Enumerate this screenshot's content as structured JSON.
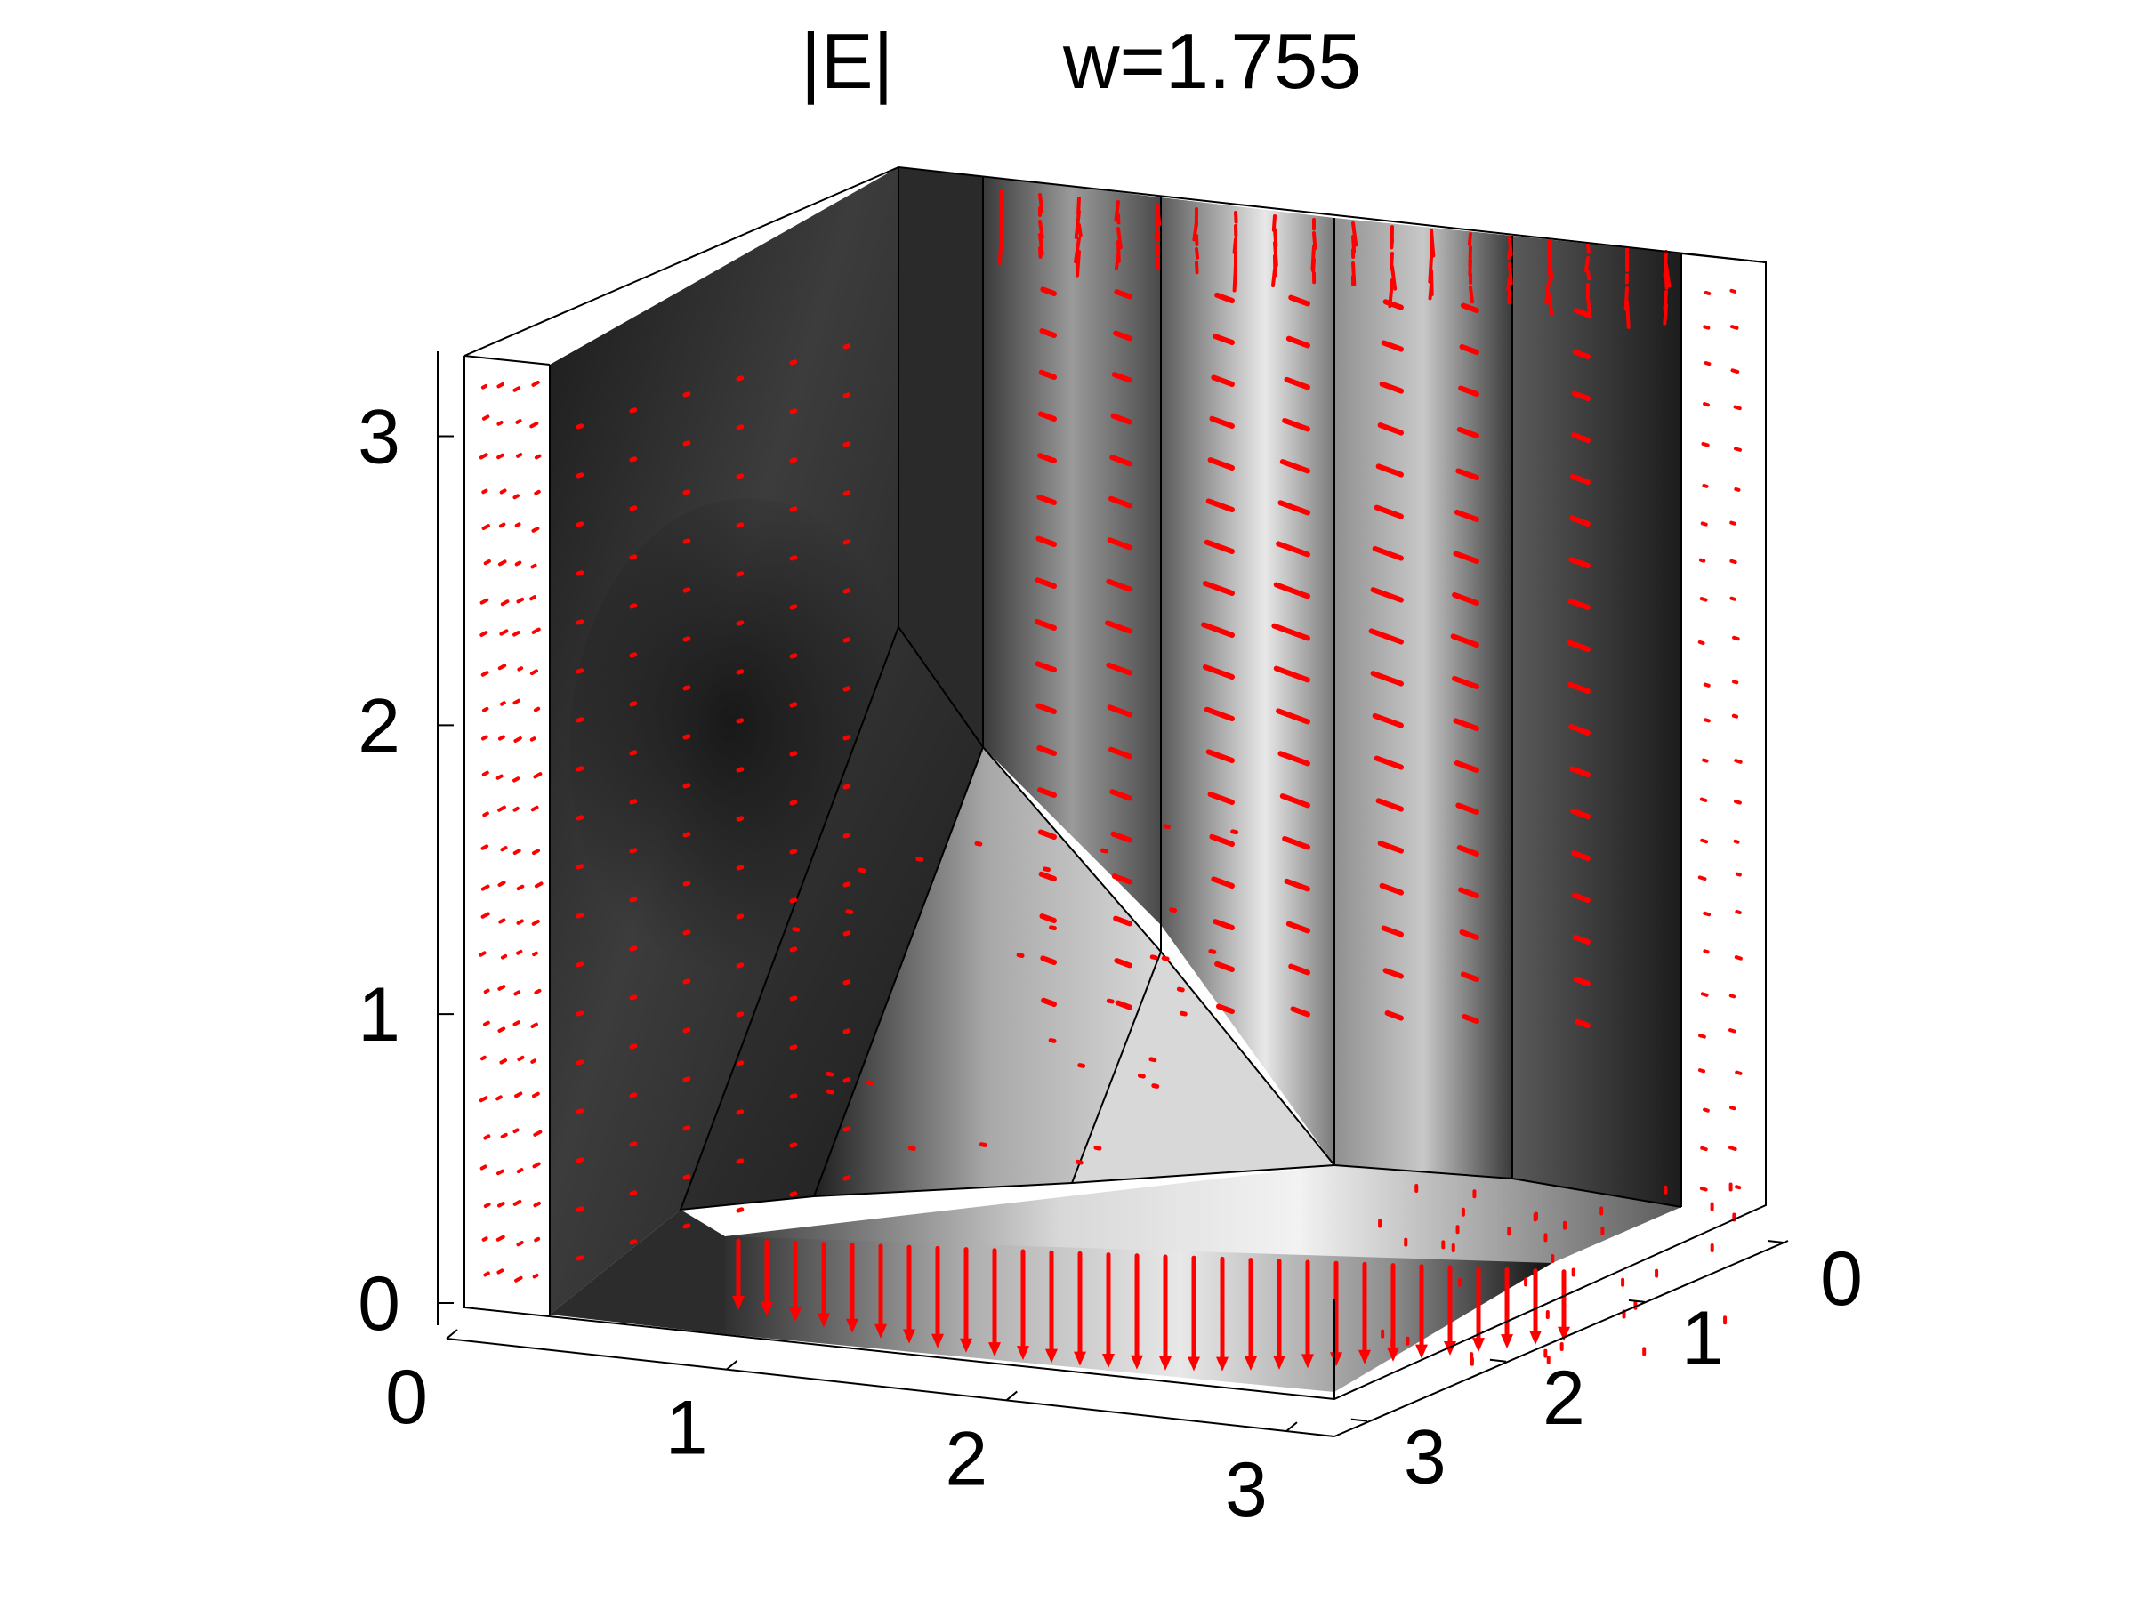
{
  "chart_data": {
    "type": "slice",
    "title_left": "|E|",
    "title_right": "w=1.755",
    "colormap": "gray",
    "vector_color": "#ff0000",
    "axes": {
      "x": {
        "range": [
          0,
          3.14
        ],
        "ticks": [
          0,
          1,
          2,
          3
        ]
      },
      "y": {
        "range": [
          0,
          3.14
        ],
        "ticks": [
          0,
          1,
          2,
          3
        ]
      },
      "z": {
        "range": [
          0,
          3.14
        ],
        "ticks": [
          0,
          1,
          2,
          3
        ]
      }
    },
    "box": true,
    "slices": [
      {
        "plane": "x",
        "value": 0.3
      },
      {
        "plane": "y",
        "value": 0.6
      },
      {
        "plane": "y",
        "value": 1.2
      },
      {
        "plane": "y",
        "value": 1.8
      },
      {
        "plane": "y",
        "value": 2.4
      },
      {
        "plane": "y",
        "value": 3.0
      },
      {
        "plane": "z",
        "value": 0.3
      }
    ]
  }
}
